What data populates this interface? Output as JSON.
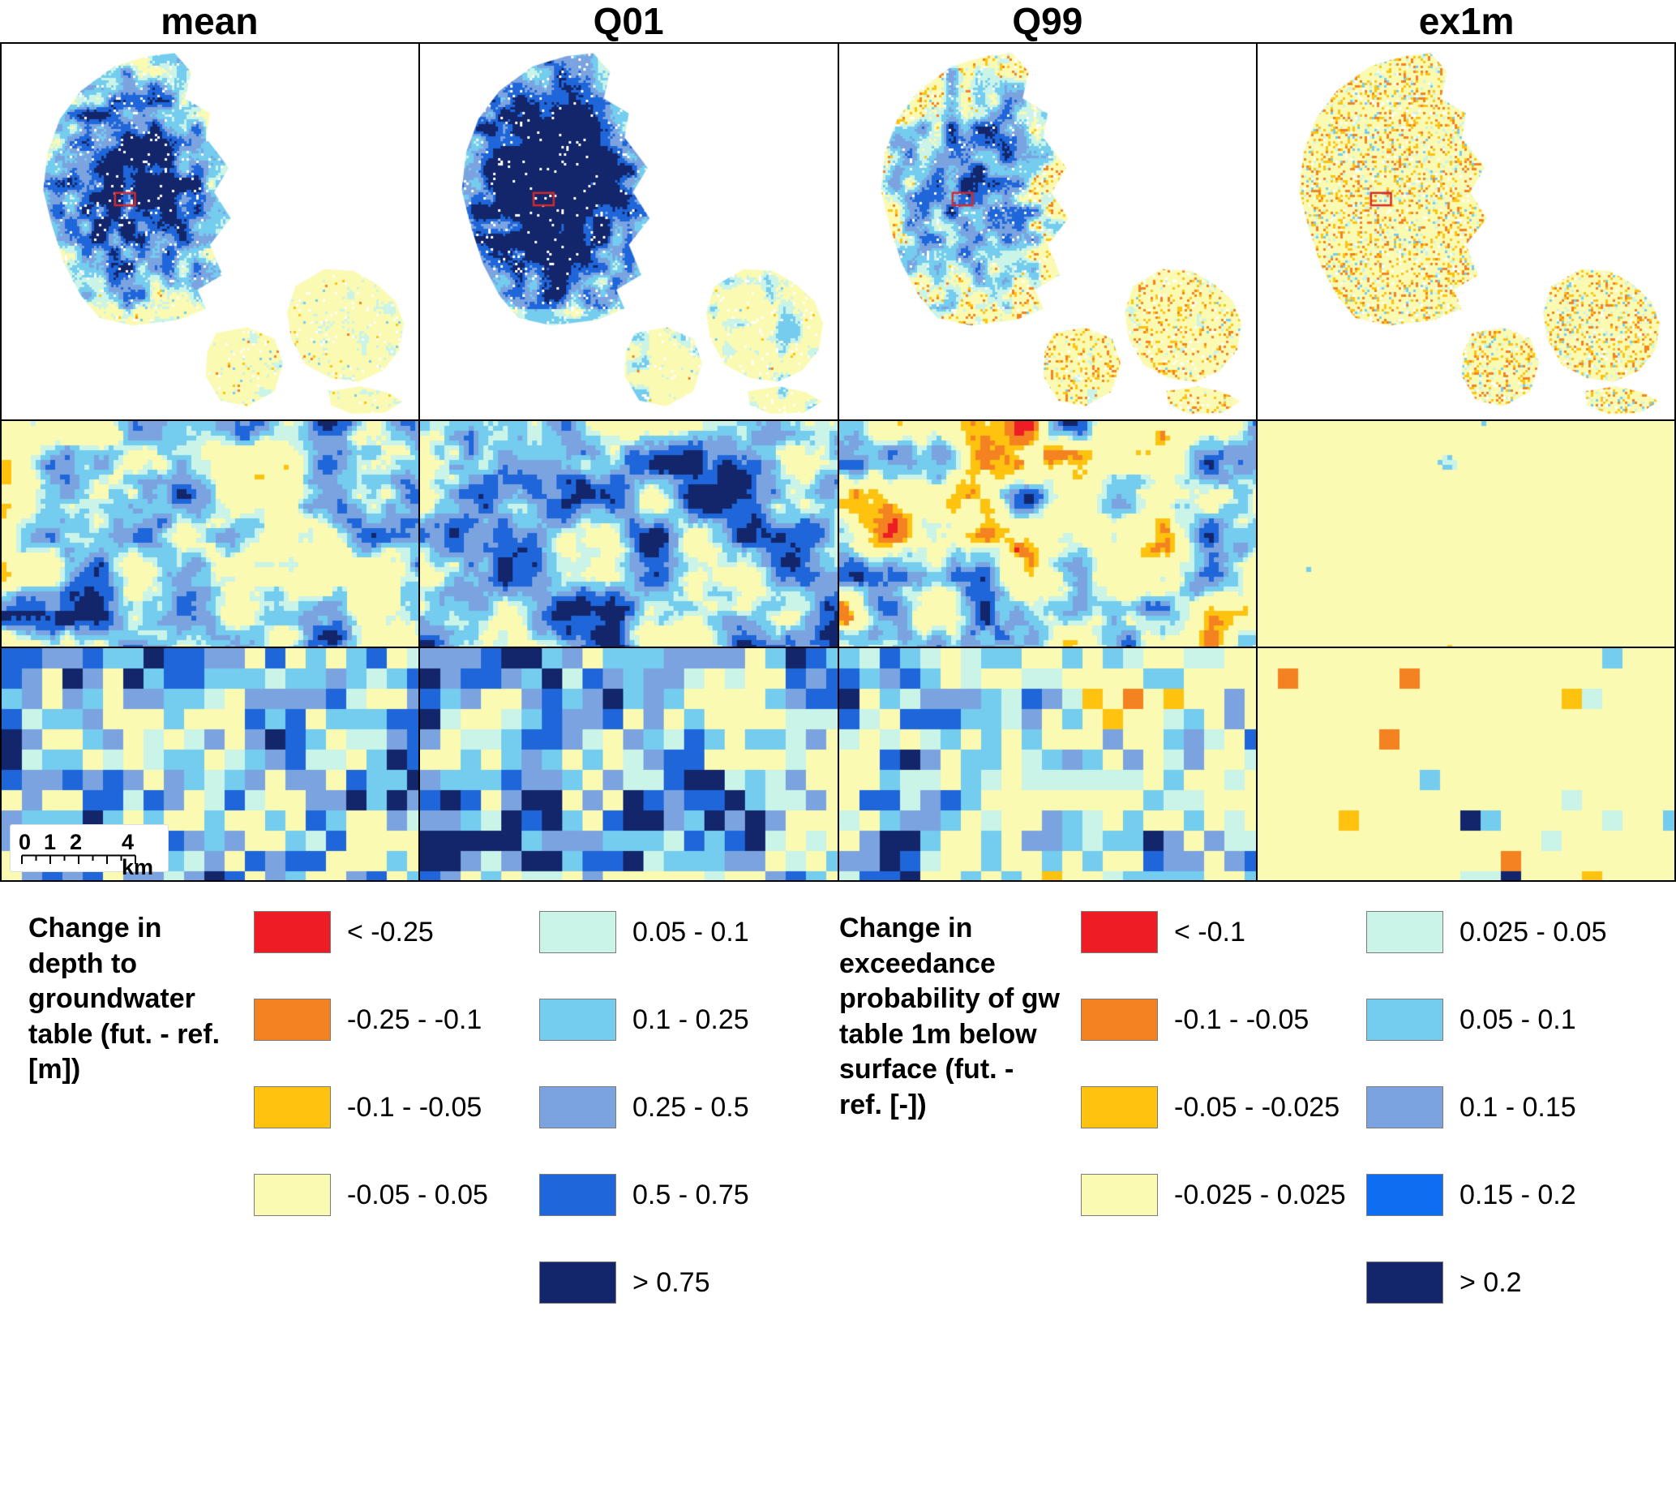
{
  "columns": [
    {
      "label": "mean"
    },
    {
      "label": "Q01"
    },
    {
      "label": "Q99"
    },
    {
      "label": "ex1m"
    }
  ],
  "legend_left": {
    "title": "Change in depth to groundwater table (fut. - ref. [m])",
    "col1": [
      {
        "color": "#ee1c25",
        "label": "< -0.25"
      },
      {
        "color": "#f58220",
        "label": "-0.25 - -0.1"
      },
      {
        "color": "#fec20f",
        "label": "-0.1 - -0.05"
      },
      {
        "color": "#fbfab3",
        "label": "-0.05 - 0.05"
      }
    ],
    "col2": [
      {
        "color": "#c9f4e7",
        "label": "0.05 - 0.1"
      },
      {
        "color": "#74ccee",
        "label": "0.1 - 0.25"
      },
      {
        "color": "#7ba3e0",
        "label": "0.25 - 0.5"
      },
      {
        "color": "#1e66d9",
        "label": "0.5 - 0.75"
      },
      {
        "color": "#13266b",
        "label": "> 0.75"
      }
    ]
  },
  "legend_right": {
    "title": "Change in exceedance probability of gw table 1m below surface (fut. - ref. [-])",
    "col1": [
      {
        "color": "#ee1c25",
        "label": "< -0.1"
      },
      {
        "color": "#f58220",
        "label": "-0.1 - -0.05"
      },
      {
        "color": "#fec20f",
        "label": "-0.05 - -0.025"
      },
      {
        "color": "#fbfab3",
        "label": "-0.025 - 0.025"
      }
    ],
    "col2": [
      {
        "color": "#c9f4e7",
        "label": "0.025 - 0.05"
      },
      {
        "color": "#74ccee",
        "label": "0.05 - 0.1"
      },
      {
        "color": "#7ba3e0",
        "label": "0.1 - 0.15"
      },
      {
        "color": "#0d6ef2",
        "label": "0.15 - 0.2"
      },
      {
        "color": "#13266b",
        "label": "> 0.2"
      }
    ]
  },
  "scale_bar": {
    "n0": "0",
    "n1": "1",
    "n2": "2",
    "n3": "4 km"
  },
  "map_config": {
    "palette": [
      "#ee1c25",
      "#f58220",
      "#fec20f",
      "#fbfab3",
      "#c9f4e7",
      "#74ccee",
      "#7ba3e0",
      "#1e66d9",
      "#13266b"
    ],
    "marker_color": "#d42a2a"
  }
}
